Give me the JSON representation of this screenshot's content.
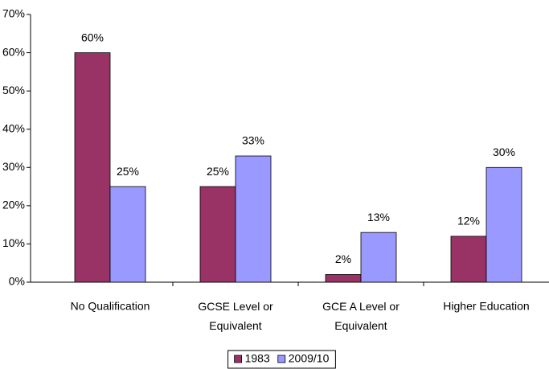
{
  "chart_data": {
    "type": "bar",
    "categories": [
      "No Qualification",
      "GCSE Level or Equivalent",
      "GCE A Level or Equivalent",
      "Higher Education"
    ],
    "series": [
      {
        "name": "1983",
        "color": "#993366",
        "values": [
          60,
          25,
          2,
          12
        ],
        "value_labels": [
          "60%",
          "25%",
          "2%",
          "12%"
        ]
      },
      {
        "name": "2009/10",
        "color": "#9999ff",
        "values": [
          25,
          33,
          13,
          30
        ],
        "value_labels": [
          "25%",
          "33%",
          "13%",
          "30%"
        ]
      }
    ],
    "ylim": [
      0,
      70
    ],
    "yticks": [
      {
        "value": 0,
        "label": "0%"
      },
      {
        "value": 10,
        "label": "10%"
      },
      {
        "value": 20,
        "label": "20%"
      },
      {
        "value": 30,
        "label": "30%"
      },
      {
        "value": 40,
        "label": "40%"
      },
      {
        "value": 50,
        "label": "50%"
      },
      {
        "value": 60,
        "label": "60%"
      },
      {
        "value": 70,
        "label": "70%"
      }
    ],
    "legend": "bottom"
  }
}
